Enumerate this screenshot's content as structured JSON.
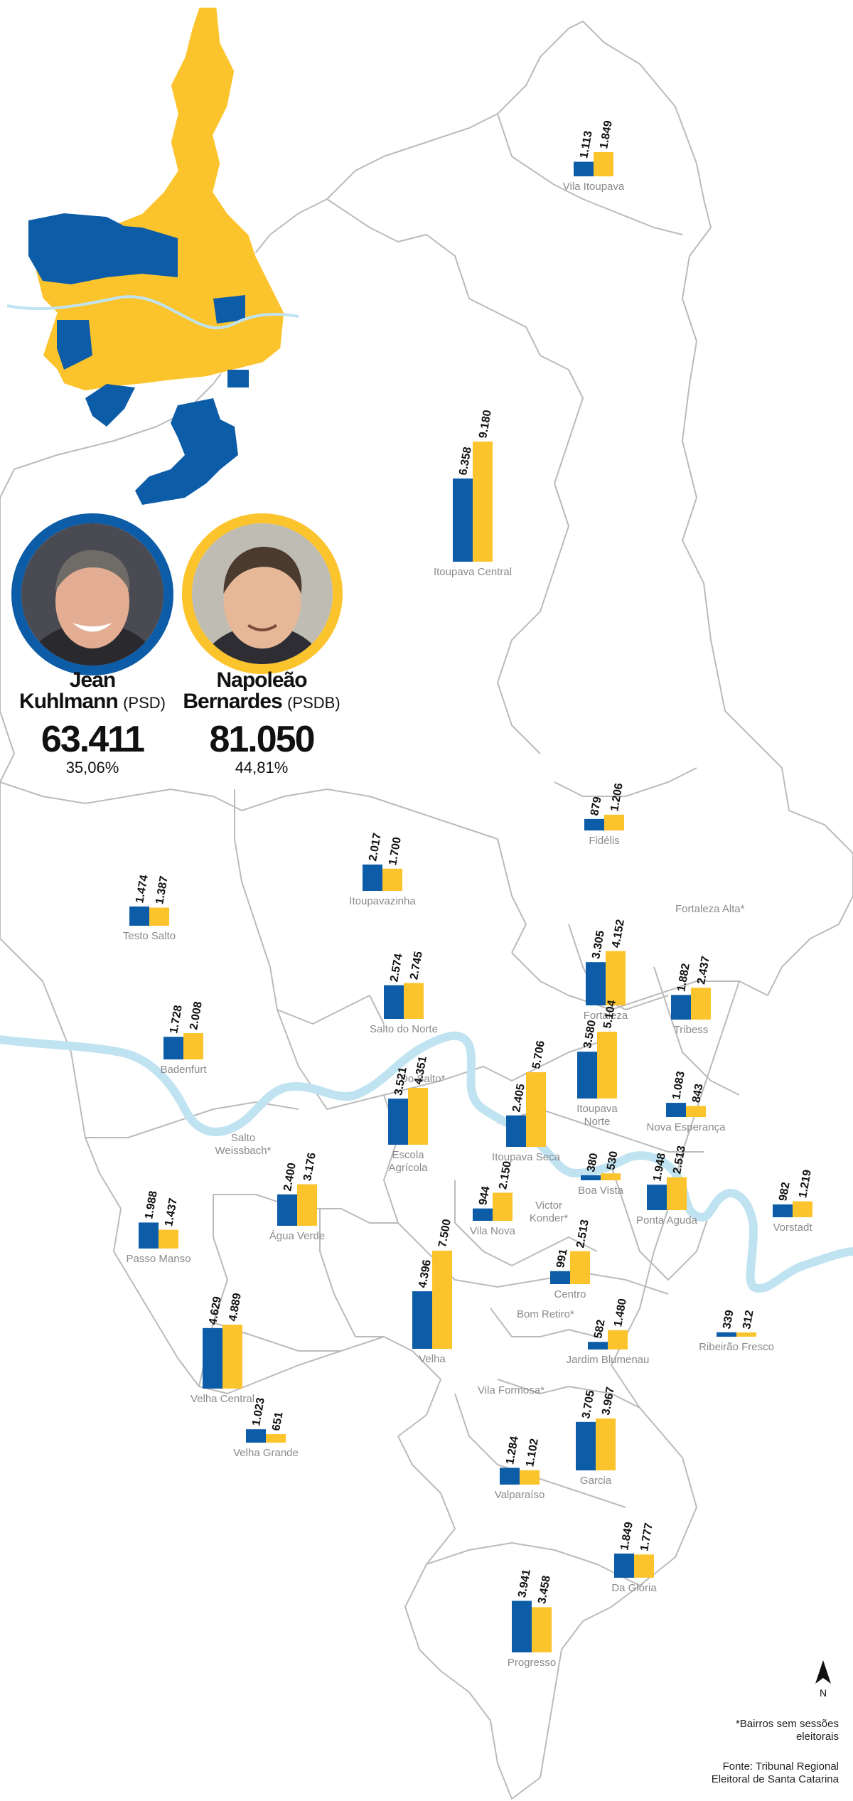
{
  "colors": {
    "blue": "#0d5ca8",
    "yellow": "#fcc42c",
    "river": "#bfe3f1",
    "border": "#bbbbbb"
  },
  "candidates": [
    {
      "first_name": "Jean",
      "last_name": "Kuhlmann",
      "party": "(PSD)",
      "votes": "63.411",
      "percent": "35,06%",
      "color": "#0d5ca8"
    },
    {
      "first_name": "Napoleão",
      "last_name": "Bernardes",
      "party": "(PSDB)",
      "votes": "81.050",
      "percent": "44,81%",
      "color": "#fcc42c"
    }
  ],
  "neighborhoods": [
    {
      "name": "Vila Itoupava",
      "blue_label": "1.113",
      "yellow_label": "1.849",
      "blue": 1113,
      "yellow": 1849
    },
    {
      "name": "Itoupava Central",
      "blue_label": "6.358",
      "yellow_label": "9.180",
      "blue": 6358,
      "yellow": 9180
    },
    {
      "name": "Fidélis",
      "blue_label": "879",
      "yellow_label": "1.206",
      "blue": 879,
      "yellow": 1206
    },
    {
      "name": "Testo Salto",
      "blue_label": "1.474",
      "yellow_label": "1.387",
      "blue": 1474,
      "yellow": 1387
    },
    {
      "name": "Itoupavazinha",
      "blue_label": "2.017",
      "yellow_label": "1.700",
      "blue": 2017,
      "yellow": 1700
    },
    {
      "name": "Fortaleza",
      "blue_label": "3.305",
      "yellow_label": "4.152",
      "blue": 3305,
      "yellow": 4152
    },
    {
      "name": "Salto do Norte",
      "blue_label": "2.574",
      "yellow_label": "2.745",
      "blue": 2574,
      "yellow": 2745
    },
    {
      "name": "Tribess",
      "blue_label": "1.882",
      "yellow_label": "2.437",
      "blue": 1882,
      "yellow": 2437
    },
    {
      "name": "Badenfurt",
      "blue_label": "1.728",
      "yellow_label": "2.008",
      "blue": 1728,
      "yellow": 2008
    },
    {
      "name": "Itoupava Norte",
      "blue_label": "3.580",
      "yellow_label": "5.104",
      "blue": 3580,
      "yellow": 5104
    },
    {
      "name": "Itoupava Seca",
      "blue_label": "2.405",
      "yellow_label": "5.706",
      "blue": 2405,
      "yellow": 5706
    },
    {
      "name": "Nova Esperança",
      "blue_label": "1.083",
      "yellow_label": "843",
      "blue": 1083,
      "yellow": 843
    },
    {
      "name": "Escola Agrícola",
      "blue_label": "3.521",
      "yellow_label": "4.351",
      "blue": 3521,
      "yellow": 4351
    },
    {
      "name": "Boa Vista",
      "blue_label": "380",
      "yellow_label": "530",
      "blue": 380,
      "yellow": 530
    },
    {
      "name": "Ponta Aguda",
      "blue_label": "1.948",
      "yellow_label": "2.513",
      "blue": 1948,
      "yellow": 2513
    },
    {
      "name": "Vorstadt",
      "blue_label": "982",
      "yellow_label": "1.219",
      "blue": 982,
      "yellow": 1219
    },
    {
      "name": "Passo Manso",
      "blue_label": "1.988",
      "yellow_label": "1.437",
      "blue": 1988,
      "yellow": 1437
    },
    {
      "name": "Água Verde",
      "blue_label": "2.400",
      "yellow_label": "3.176",
      "blue": 2400,
      "yellow": 3176
    },
    {
      "name": "Vila Nova",
      "blue_label": "944",
      "yellow_label": "2.150",
      "blue": 944,
      "yellow": 2150
    },
    {
      "name": "Centro",
      "blue_label": "991",
      "yellow_label": "2.513",
      "blue": 991,
      "yellow": 2513
    },
    {
      "name": "Velha",
      "blue_label": "4.396",
      "yellow_label": "7.500",
      "blue": 4396,
      "yellow": 7500
    },
    {
      "name": "Velha Central",
      "blue_label": "4.629",
      "yellow_label": "4.889",
      "blue": 4629,
      "yellow": 4889
    },
    {
      "name": "Jardim Blumenau",
      "blue_label": "582",
      "yellow_label": "1.480",
      "blue": 582,
      "yellow": 1480
    },
    {
      "name": "Ribeirão Fresco",
      "blue_label": "339",
      "yellow_label": "312",
      "blue": 339,
      "yellow": 312
    },
    {
      "name": "Velha Grande",
      "blue_label": "1.023",
      "yellow_label": "651",
      "blue": 1023,
      "yellow": 651
    },
    {
      "name": "Garcia",
      "blue_label": "3.705",
      "yellow_label": "3.967",
      "blue": 3705,
      "yellow": 3967
    },
    {
      "name": "Valparaíso",
      "blue_label": "1.284",
      "yellow_label": "1.102",
      "blue": 1284,
      "yellow": 1102
    },
    {
      "name": "Da Glória",
      "blue_label": "1.849",
      "yellow_label": "1.777",
      "blue": 1849,
      "yellow": 1777
    },
    {
      "name": "Progresso",
      "blue_label": "3.941",
      "yellow_label": "3.458",
      "blue": 3941,
      "yellow": 3458
    }
  ],
  "no_section_neighborhoods": [
    "Fortaleza Alta*",
    "Do Salto*",
    "Salto Weissbach*",
    "Victor Konder*",
    "Bom Retiro*",
    "Vila Formosa*"
  ],
  "compass": "N",
  "footnote": "*Bairros sem sessões eleitorais",
  "source": "Fonte: Tribunal Regional Eleitoral de Santa Catarina"
}
